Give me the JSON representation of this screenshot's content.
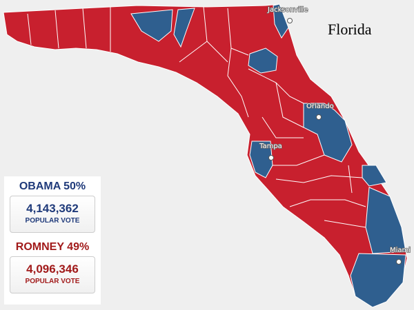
{
  "title": "Florida",
  "cities": [
    "Jacksonville",
    "Orlando",
    "Tampa",
    "Miami"
  ],
  "results": [
    {
      "heading": "OBAMA 50%",
      "votes": "4,143,362",
      "caption": "POPULAR VOTE"
    },
    {
      "heading": "ROMNEY 49%",
      "votes": "4,096,346",
      "caption": "POPULAR VOTE"
    }
  ]
}
